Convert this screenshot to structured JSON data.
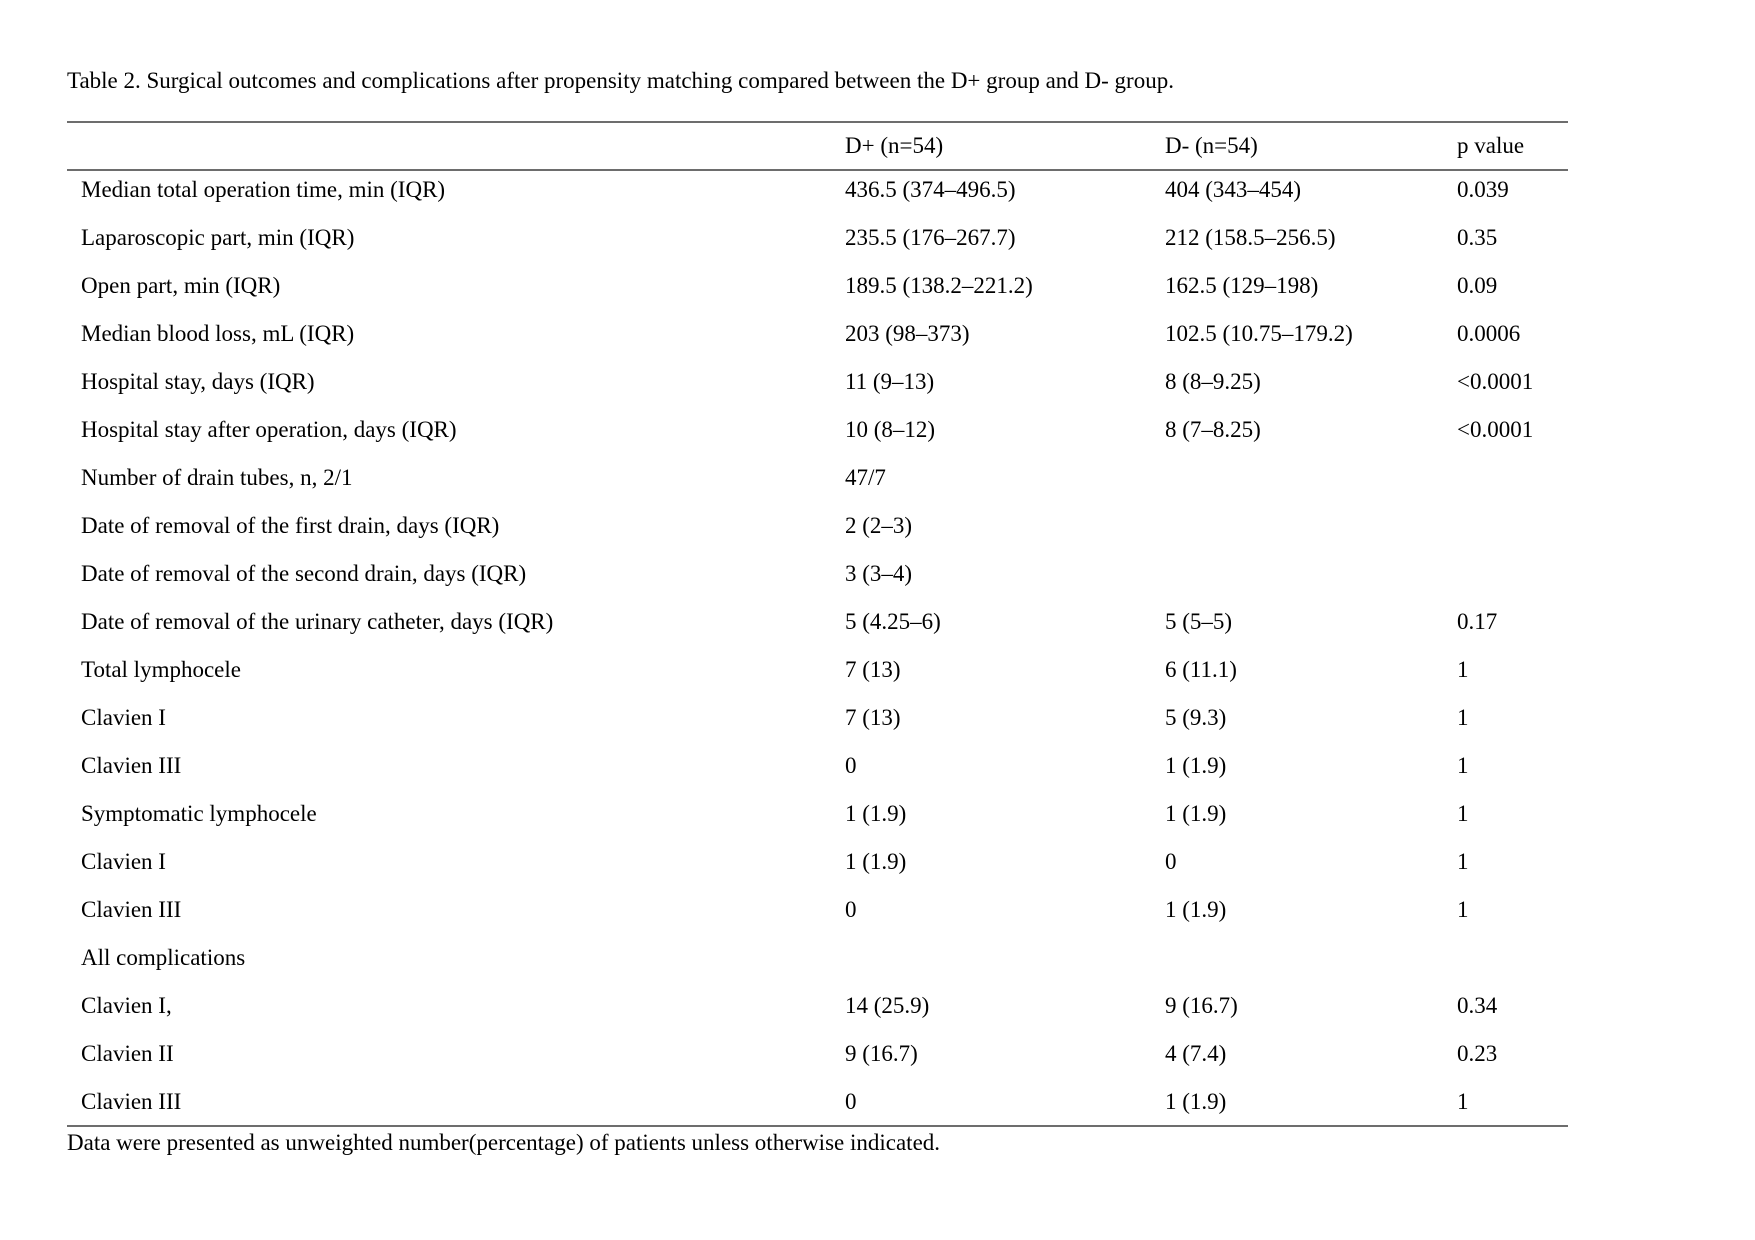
{
  "title": "Table 2. Surgical outcomes and complications after propensity matching compared between the D+ group and D- group.",
  "table": {
    "header": {
      "label": "",
      "dplus": "D+ (n=54)",
      "dminus": "D- (n=54)",
      "p": "p value"
    },
    "rows": [
      {
        "label": "Median total operation time, min (IQR)",
        "dplus": "436.5 (374–496.5)",
        "dminus": "404 (343–454)",
        "p": "0.039"
      },
      {
        "label": "Laparoscopic part, min (IQR)",
        "dplus": "235.5 (176–267.7)",
        "dminus": "212 (158.5–256.5)",
        "p": "0.35"
      },
      {
        "label": "Open part, min (IQR)",
        "dplus": "189.5 (138.2–221.2)",
        "dminus": "162.5 (129–198)",
        "p": "0.09"
      },
      {
        "label": "Median blood loss, mL (IQR)",
        "dplus": "203 (98–373)",
        "dminus": "102.5 (10.75–179.2)",
        "p": "0.0006"
      },
      {
        "label": "Hospital stay, days (IQR)",
        "dplus": "11 (9–13)",
        "dminus": "8 (8–9.25)",
        "p": "<0.0001"
      },
      {
        "label": "Hospital stay after operation, days (IQR)",
        "dplus": "10 (8–12)",
        "dminus": "8 (7–8.25)",
        "p": "<0.0001"
      },
      {
        "label": "Number of drain tubes, n, 2/1",
        "dplus": "47/7",
        "dminus": "",
        "p": ""
      },
      {
        "label": "Date of removal of the first drain, days (IQR)",
        "dplus": "2 (2–3)",
        "dminus": "",
        "p": ""
      },
      {
        "label": "Date of removal of the second drain, days (IQR)",
        "dplus": "3 (3–4)",
        "dminus": "",
        "p": ""
      },
      {
        "label": "Date of removal of the urinary catheter, days (IQR)",
        "dplus": "5 (4.25–6)",
        "dminus": "5 (5–5)",
        "p": "0.17"
      },
      {
        "label": "Total lymphocele",
        "dplus": "7 (13)",
        "dminus": "6 (11.1)",
        "p": "1"
      },
      {
        "label": "Clavien I",
        "dplus": "7 (13)",
        "dminus": "5 (9.3)",
        "p": "1"
      },
      {
        "label": "Clavien III",
        "dplus": "0",
        "dminus": "1 (1.9)",
        "p": "1"
      },
      {
        "label": "Symptomatic lymphocele",
        "dplus": "1 (1.9)",
        "dminus": "1 (1.9)",
        "p": "1"
      },
      {
        "label": "Clavien I",
        "dplus": "1 (1.9)",
        "dminus": "0",
        "p": "1"
      },
      {
        "label": "Clavien III",
        "dplus": "0",
        "dminus": "1 (1.9)",
        "p": "1"
      },
      {
        "label": "All complications",
        "dplus": "",
        "dminus": "",
        "p": ""
      },
      {
        "label": "Clavien I,",
        "dplus": "14 (25.9)",
        "dminus": "9 (16.7)",
        "p": "0.34"
      },
      {
        "label": "Clavien II",
        "dplus": "9 (16.7)",
        "dminus": "4 (7.4)",
        "p": "0.23"
      },
      {
        "label": "Clavien III",
        "dplus": "0",
        "dminus": "1 (1.9)",
        "p": "1"
      }
    ]
  },
  "footnote": "Data were presented as unweighted number(percentage) of patients unless otherwise indicated."
}
